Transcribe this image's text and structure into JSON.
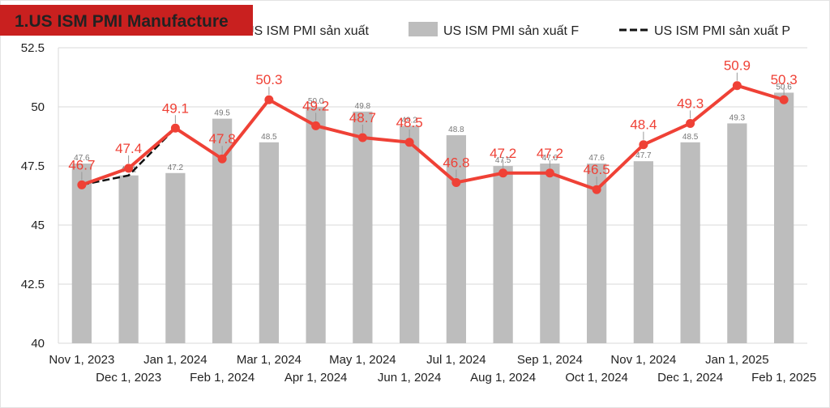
{
  "title": "1.US ISM PMI Manufacture",
  "chart_data": {
    "type": "bar",
    "categories": [
      "Nov 1, 2023",
      "Dec 1, 2023",
      "Jan 1, 2024",
      "Feb 1, 2024",
      "Mar 1, 2024",
      "Apr 1, 2024",
      "May 1, 2024",
      "Jun 1, 2024",
      "Jul 1, 2024",
      "Aug 1, 2024",
      "Sep 1, 2024",
      "Oct 1, 2024",
      "Nov 1, 2024",
      "Dec 1, 2024",
      "Jan 1, 2025",
      "Feb 1, 2025"
    ],
    "ylim": [
      40,
      52.5
    ],
    "yticks": [
      "40",
      "42.5",
      "45",
      "47.5",
      "50",
      "52.5"
    ],
    "grid": true,
    "legend_position": "top",
    "series": [
      {
        "name": "US ISM PMI sản xuất",
        "kind": "line",
        "color": "#ef4136",
        "values": [
          46.7,
          47.4,
          49.1,
          47.8,
          50.3,
          49.2,
          48.7,
          48.5,
          46.8,
          47.2,
          47.2,
          46.5,
          48.4,
          49.3,
          50.9,
          50.3
        ],
        "labels": [
          "46.7",
          "47.4",
          "49.1",
          "47.8",
          "50.3",
          "49.2",
          "48.7",
          "48.5",
          "46.8",
          "47.2",
          "47.2",
          "46.5",
          "48.4",
          "49.3",
          "50.9",
          "50.3"
        ]
      },
      {
        "name": "US ISM PMI sản xuất F",
        "kind": "bar",
        "color": "#bdbdbd",
        "values": [
          47.6,
          47.1,
          47.2,
          49.5,
          48.5,
          50.0,
          49.8,
          49.2,
          48.8,
          47.5,
          47.6,
          47.6,
          47.7,
          48.5,
          49.3,
          50.6
        ],
        "labels": [
          "47.6",
          "47.1",
          "47.2",
          "49.5",
          "48.5",
          "50.0",
          "49.8",
          "49.2",
          "48.8",
          "47.5",
          "47.6",
          "47.6",
          "47.7",
          "48.5",
          "49.3",
          "50.6"
        ]
      },
      {
        "name": "US ISM PMI sản xuất P",
        "kind": "dashed-line",
        "color": "#111111",
        "values": [
          46.7,
          47.1,
          49.1,
          47.8,
          50.3,
          49.2,
          48.7,
          48.5,
          46.8,
          47.2,
          47.2,
          46.5,
          48.4,
          49.3,
          50.9,
          50.3
        ]
      }
    ]
  }
}
